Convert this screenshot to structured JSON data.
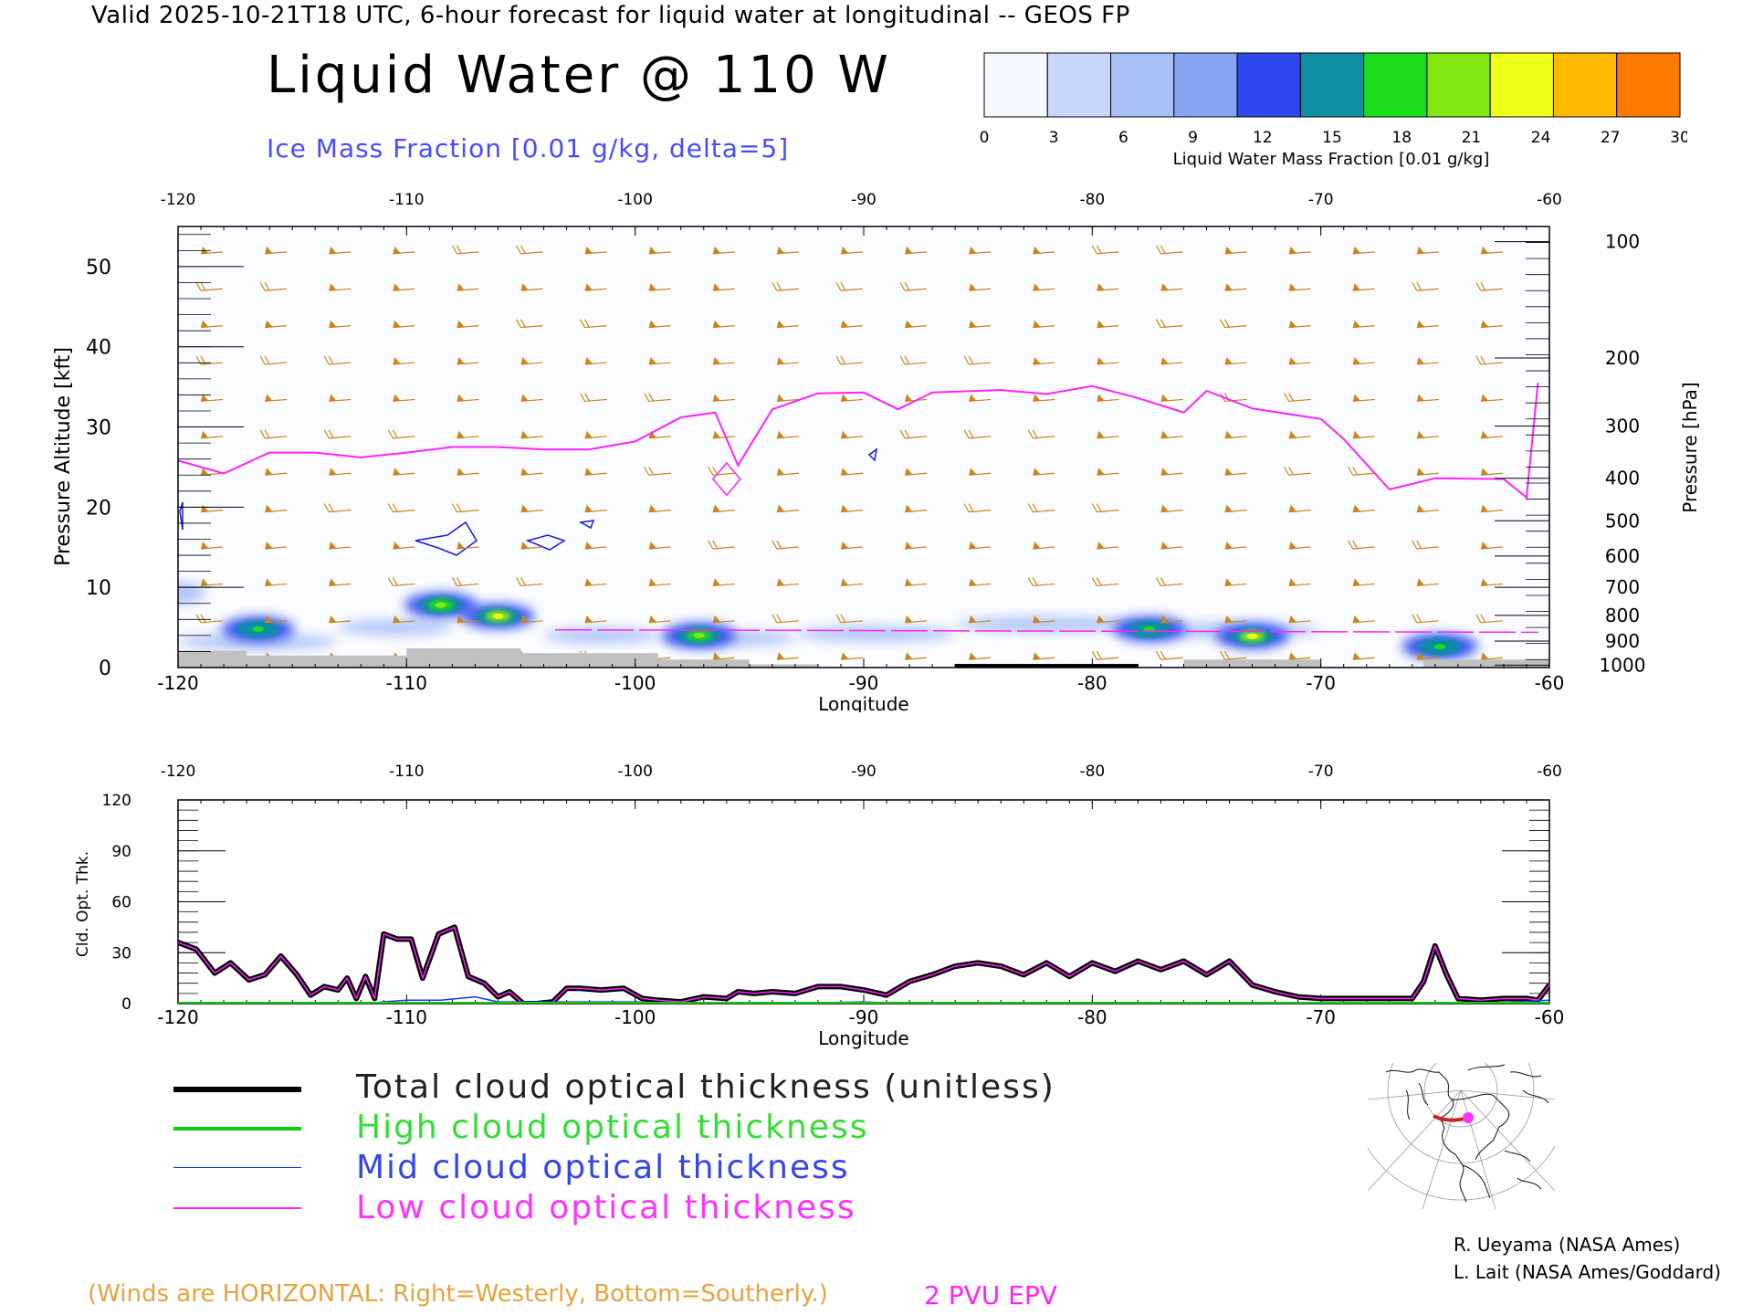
{
  "header": {
    "valid_line": "Valid 2025-10-21T18 UTC, 6-hour forecast for liquid water at longitudinal -- GEOS FP",
    "title": "Liquid Water @ 110 W",
    "subtitle": "Ice Mass Fraction [0.01 g/kg, delta=5]",
    "subtitle_color": "#4a4aff"
  },
  "colorbar": {
    "ticks": [
      "0",
      "3",
      "6",
      "9",
      "12",
      "15",
      "18",
      "21",
      "24",
      "27",
      "30"
    ],
    "caption": "Liquid Water Mass Fraction [0.01 g/kg]",
    "colors": [
      "#f6f8ff",
      "#c8d6fb",
      "#a9c0f7",
      "#86a2f2",
      "#2c48ee",
      "#0f8ea4",
      "#1ddc1d",
      "#83e812",
      "#f0ff1a",
      "#ffba00",
      "#ff7a00"
    ]
  },
  "chart_data": [
    {
      "type": "heatmap",
      "title": "Liquid Water @ 110 W",
      "xlabel": "Longitude",
      "ylabel": "Pressure Altitude [kft]",
      "ylabel_right": "Pressure [hPa]",
      "xlim": [
        -120,
        -60
      ],
      "ylim": [
        0,
        55
      ],
      "x_ticks": [
        "-120",
        "-110",
        "-100",
        "-90",
        "-80",
        "-70",
        "-60"
      ],
      "x_tick_values": [
        -120,
        -110,
        -100,
        -90,
        -80,
        -70,
        -60
      ],
      "y_ticks": [
        "0",
        "10",
        "20",
        "30",
        "40",
        "50"
      ],
      "y_tick_values": [
        0,
        10,
        20,
        30,
        40,
        50
      ],
      "pressure_ticks": [
        {
          "label": "100",
          "kft": 53.1
        },
        {
          "label": "200",
          "kft": 38.6
        },
        {
          "label": "300",
          "kft": 30.1
        },
        {
          "label": "400",
          "kft": 23.6
        },
        {
          "label": "500",
          "kft": 18.3
        },
        {
          "label": "600",
          "kft": 13.9
        },
        {
          "label": "700",
          "kft": 10.0
        },
        {
          "label": "800",
          "kft": 6.5
        },
        {
          "label": "900",
          "kft": 3.3
        },
        {
          "label": "1000",
          "kft": 0.3
        }
      ],
      "epv_2pvu_line": {
        "name": "2 PVU EPV",
        "color": "#ff22ff",
        "points": [
          [
            -120,
            25.8
          ],
          [
            -118,
            24.2
          ],
          [
            -116,
            26.8
          ],
          [
            -114,
            26.8
          ],
          [
            -112,
            26.2
          ],
          [
            -110,
            26.8
          ],
          [
            -108,
            27.5
          ],
          [
            -106,
            27.5
          ],
          [
            -104,
            27.2
          ],
          [
            -102,
            27.2
          ],
          [
            -100,
            28.2
          ],
          [
            -98,
            31.2
          ],
          [
            -96.5,
            31.8
          ],
          [
            -95.5,
            25.2
          ],
          [
            -94,
            32.2
          ],
          [
            -92,
            34.2
          ],
          [
            -90,
            34.3
          ],
          [
            -88.5,
            32.2
          ],
          [
            -87,
            34.3
          ],
          [
            -84,
            34.6
          ],
          [
            -82,
            34.1
          ],
          [
            -80,
            35.1
          ],
          [
            -78,
            33.6
          ],
          [
            -76,
            31.8
          ],
          [
            -75,
            34.5
          ],
          [
            -73,
            32.3
          ],
          [
            -70,
            31.0
          ],
          [
            -69,
            28.5
          ],
          [
            -67,
            22.2
          ],
          [
            -65,
            23.6
          ],
          [
            -62,
            23.5
          ],
          [
            -61,
            21.2
          ],
          [
            -60.5,
            35.5
          ]
        ]
      },
      "liquid_water_features": [
        {
          "lon": -116.5,
          "alt": 4.8,
          "value": 20
        },
        {
          "lon": -108.5,
          "alt": 7.8,
          "value": 21
        },
        {
          "lon": -106,
          "alt": 6.4,
          "value": 24
        },
        {
          "lon": -97.2,
          "alt": 4.0,
          "value": 21
        },
        {
          "lon": -77.5,
          "alt": 4.8,
          "value": 18
        },
        {
          "lon": -73,
          "alt": 3.9,
          "value": 24
        },
        {
          "lon": -64.8,
          "alt": 2.6,
          "value": 20
        }
      ]
    },
    {
      "type": "line",
      "xlabel": "Longitude",
      "ylabel": "Cld. Opt. Thk.",
      "xlim": [
        -120,
        -60
      ],
      "ylim": [
        0,
        120
      ],
      "x_ticks": [
        "-120",
        "-110",
        "-100",
        "-90",
        "-80",
        "-70",
        "-60"
      ],
      "x_tick_values": [
        -120,
        -110,
        -100,
        -90,
        -80,
        -70,
        -60
      ],
      "y_ticks": [
        "0",
        "30",
        "60",
        "90",
        "120"
      ],
      "y_tick_values": [
        0,
        30,
        60,
        90,
        120
      ],
      "series": [
        {
          "name": "Total cloud optical thickness (unitless)",
          "color": "#000000",
          "x": [
            -120,
            -119.2,
            -118.4,
            -117.7,
            -116.9,
            -116.2,
            -115.5,
            -114.8,
            -114.2,
            -113.6,
            -113,
            -112.6,
            -112.2,
            -111.8,
            -111.4,
            -111,
            -110.4,
            -109.8,
            -109.3,
            -108.6,
            -107.9,
            -107.3,
            -106.6,
            -106,
            -105.5,
            -104.9,
            -104.3,
            -103.6,
            -103,
            -102.4,
            -101.5,
            -100.5,
            -99.7,
            -99,
            -98,
            -97,
            -96,
            -95.5,
            -94.8,
            -94,
            -93,
            -92,
            -91,
            -90,
            -89,
            -88,
            -87,
            -86,
            -85,
            -84,
            -83,
            -82,
            -81,
            -80,
            -79,
            -78,
            -77,
            -76,
            -75,
            -74,
            -73,
            -72,
            -71,
            -70,
            -69,
            -68,
            -67,
            -66,
            -65.5,
            -65,
            -64.5,
            -64,
            -63,
            -62,
            -61,
            -60.5,
            -60
          ],
          "y": [
            36,
            32,
            18,
            24,
            14,
            17,
            28,
            17,
            5,
            10,
            8,
            15,
            3,
            16,
            3,
            41,
            38,
            38,
            15,
            41,
            45,
            16,
            12,
            4,
            7,
            0,
            0,
            1,
            9,
            9,
            8,
            9,
            3,
            2,
            1,
            4,
            3,
            7,
            6,
            7,
            6,
            10,
            10,
            8,
            5,
            13,
            17,
            22,
            24,
            22,
            17,
            24,
            16,
            24,
            19,
            25,
            20,
            25,
            17,
            25,
            11,
            7,
            4,
            3,
            3,
            3,
            3,
            3,
            13,
            34,
            17,
            3,
            2,
            3,
            3,
            2,
            11
          ]
        },
        {
          "name": "High cloud optical thickness",
          "color": "#11cc11",
          "x": [
            -120,
            -60
          ],
          "y": [
            0,
            0
          ]
        },
        {
          "name": "Mid cloud optical thickness",
          "color": "#2233ee",
          "x": [
            -120,
            -112,
            -111,
            -110,
            -108.5,
            -107,
            -106,
            -104,
            -102,
            -100,
            -98,
            -96,
            -94,
            -90,
            -88,
            -86,
            -80,
            -70,
            -63,
            -60
          ],
          "y": [
            0,
            0,
            1,
            2,
            2,
            4,
            1,
            1,
            1,
            1,
            0,
            0,
            0,
            1,
            0,
            0,
            0,
            0,
            0,
            2
          ]
        },
        {
          "name": "Low cloud optical thickness",
          "color": "#ff22ff",
          "x": [
            -120,
            -119.2,
            -118.4,
            -117.7,
            -116.9,
            -116.2,
            -115.5,
            -114.8,
            -114.2,
            -113.6,
            -113,
            -112.6,
            -112.2,
            -111.8,
            -111.4,
            -111,
            -110.4,
            -109.8,
            -109.3,
            -108.6,
            -107.9,
            -107.3,
            -106.6,
            -106,
            -105.5,
            -104.9,
            -104.3,
            -103.6,
            -103,
            -102.4,
            -101.5,
            -100.5,
            -99.7,
            -99,
            -98,
            -97,
            -96,
            -95.5,
            -94.8,
            -94,
            -93,
            -92,
            -91,
            -90,
            -89,
            -88,
            -87,
            -86,
            -85,
            -84,
            -83,
            -82,
            -81,
            -80,
            -79,
            -78,
            -77,
            -76,
            -75,
            -74,
            -73,
            -72,
            -71,
            -70,
            -69,
            -68,
            -67,
            -66,
            -65.5,
            -65,
            -64.5,
            -64,
            -63,
            -62,
            -61,
            -60.5,
            -60
          ],
          "y": [
            36,
            32,
            18,
            24,
            14,
            17,
            28,
            17,
            5,
            10,
            8,
            15,
            3,
            16,
            3,
            41,
            38,
            38,
            15,
            41,
            45,
            16,
            12,
            4,
            7,
            0,
            0,
            1,
            9,
            9,
            8,
            9,
            3,
            2,
            1,
            4,
            3,
            7,
            6,
            7,
            6,
            10,
            10,
            8,
            5,
            13,
            17,
            22,
            24,
            22,
            17,
            24,
            16,
            24,
            19,
            25,
            20,
            25,
            17,
            25,
            11,
            7,
            4,
            3,
            3,
            3,
            3,
            3,
            13,
            34,
            17,
            3,
            2,
            3,
            3,
            2,
            11
          ]
        }
      ]
    }
  ],
  "legend": {
    "items": [
      {
        "label": "Total cloud optical thickness (unitless)",
        "color": "#000000",
        "text_color": "#222222"
      },
      {
        "label": "High cloud optical thickness",
        "color": "#11cc11",
        "text_color": "#33dd33"
      },
      {
        "label": "Mid cloud optical thickness",
        "color": "#2233ee",
        "text_color": "#3344ee"
      },
      {
        "label": "Low cloud optical thickness",
        "color": "#ff22ff",
        "text_color": "#ff33ff"
      }
    ]
  },
  "notes": {
    "winds": "(Winds are HORIZONTAL: Right=Westerly, Bottom=Southerly.)",
    "winds_color": "#e6a23c",
    "epv": "2 PVU EPV",
    "epv_color": "#ff22ff"
  },
  "credits": {
    "line1": "R. Ueyama (NASA Ames)",
    "line2": "L. Lait (NASA Ames/Goddard)"
  },
  "colors": {
    "wind_barb": "#c8861e",
    "ground": "#c0c0c0",
    "ice_contour": "#1a1add",
    "map_section": "#cc2222",
    "map_marker": "#ff33ff"
  }
}
